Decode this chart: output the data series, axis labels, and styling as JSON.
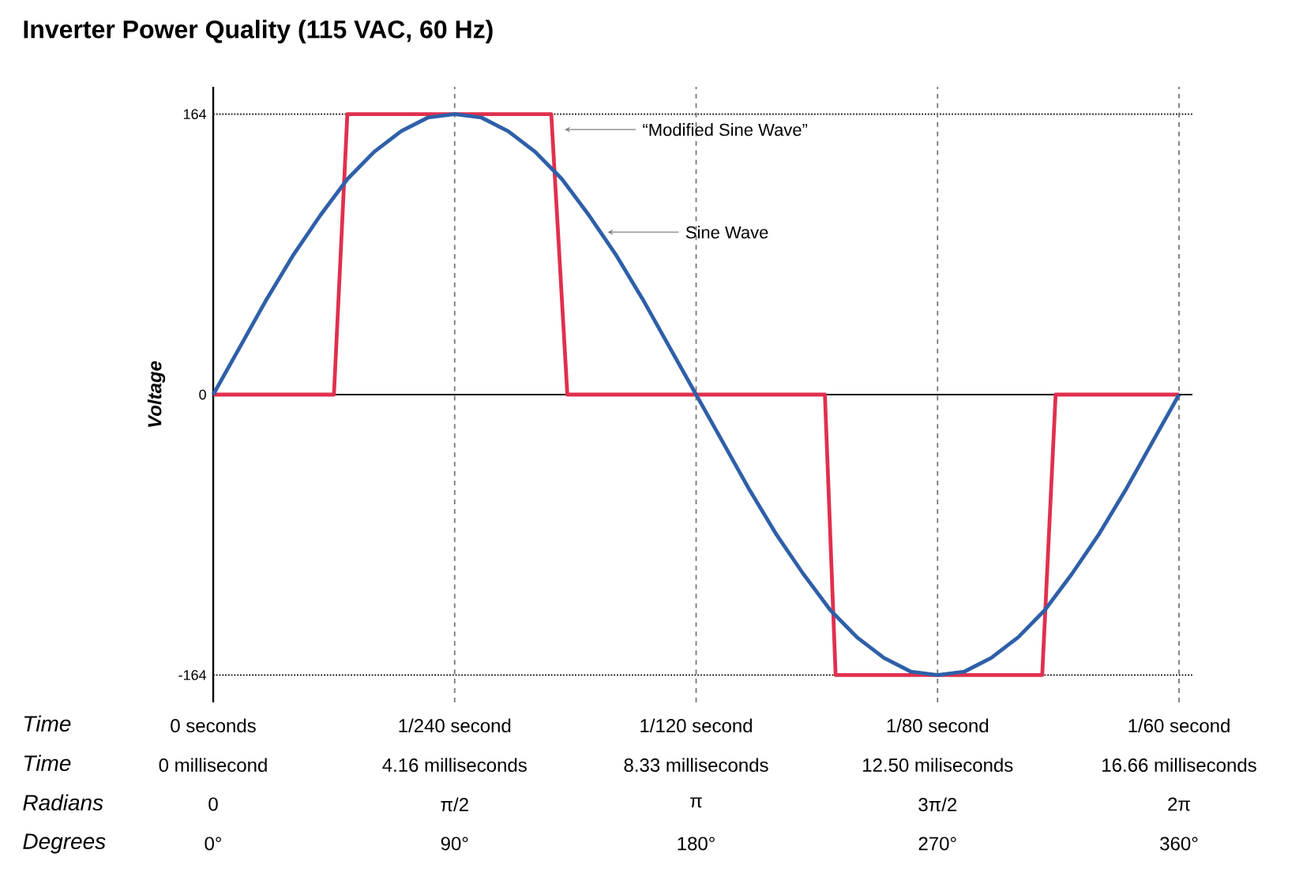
{
  "chart_data": {
    "type": "line",
    "title": "Inverter Power Quality (115 VAC, 60 Hz)",
    "ylabel": "Voltage",
    "xlim": [
      0,
      365
    ],
    "ylim": [
      -180,
      180
    ],
    "xticks": [
      {
        "value": 0,
        "label": "0°"
      },
      {
        "value": 90,
        "label": "90°"
      },
      {
        "value": 180,
        "label": "180°"
      },
      {
        "value": 270,
        "label": "270°"
      },
      {
        "value": 360,
        "label": "360°"
      }
    ],
    "yticks": [
      -164,
      0,
      164
    ],
    "marker": "none",
    "line_style": "solid",
    "grid": false,
    "series": [
      {
        "color": "#e0304e",
        "x": [
          0,
          45,
          50,
          126,
          132,
          228,
          232,
          309,
          314,
          360
        ],
        "values": [
          0,
          0,
          164,
          164,
          0,
          0,
          -164,
          -164,
          0,
          0
        ]
      },
      {
        "color": "#2e5fa8",
        "x": [
          0,
          10,
          20,
          30,
          40,
          50,
          60,
          70,
          80,
          90,
          100,
          110,
          120,
          130,
          140,
          150,
          160,
          170,
          180,
          190,
          200,
          210,
          220,
          230,
          240,
          250,
          260,
          270,
          280,
          290,
          300,
          310,
          320,
          330,
          340,
          350,
          360
        ],
        "values": [
          0,
          28,
          56,
          82,
          105,
          126,
          142,
          154,
          162,
          164,
          162,
          154,
          142,
          126,
          105,
          82,
          56,
          28,
          0,
          -28,
          -56,
          -82,
          -105,
          -126,
          -142,
          -154,
          -162,
          -164,
          -162,
          -154,
          -142,
          -126,
          -105,
          -82,
          -56,
          -28,
          0
        ]
      }
    ],
    "ref_lines": [
      {
        "axis": "y",
        "value": 0,
        "color": "#000000",
        "line_style": "solid"
      },
      {
        "axis": "y",
        "value": 164,
        "color": "#000000",
        "line_style": "dotted"
      },
      {
        "axis": "y",
        "value": -164,
        "color": "#000000",
        "line_style": "dotted"
      },
      {
        "axis": "x",
        "value": 90,
        "color": "#777777",
        "line_style": "dashed"
      },
      {
        "axis": "x",
        "value": 180,
        "color": "#777777",
        "line_style": "dashed"
      },
      {
        "axis": "x",
        "value": 270,
        "color": "#777777",
        "line_style": "dashed"
      },
      {
        "axis": "x",
        "value": 360,
        "color": "#777777",
        "line_style": "dashed"
      }
    ],
    "annotations": [
      "Time",
      "Time",
      "Radians",
      "Degrees",
      "0 seconds",
      "1/240 second",
      "1/120 second",
      "1/80 second",
      "1/60 second",
      "0 millisecond",
      "4.16 milliseconds",
      "8.33 milliseconds",
      "12.50 miliseconds",
      "16.66 milliseconds",
      "0",
      "π/2",
      "π",
      "3π/2",
      "2π",
      {
        "text": "“Modified Sine Wave”",
        "x": 131,
        "y": 155
      },
      {
        "text": "Sine Wave",
        "x": 147,
        "y": 95
      }
    ]
  }
}
